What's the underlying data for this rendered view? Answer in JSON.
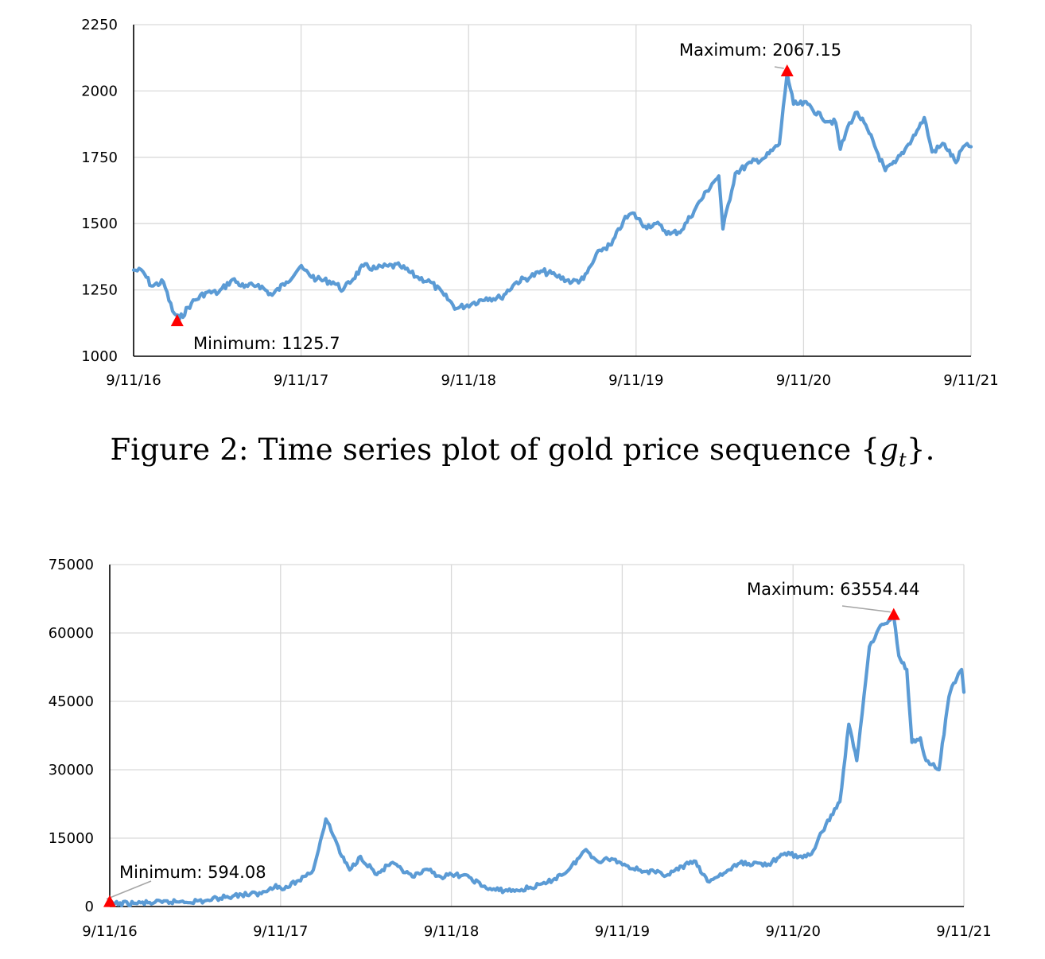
{
  "caption": {
    "prefix": "Figure 2: Time series plot of gold price sequence {",
    "symbol": "g",
    "subscript": "t",
    "suffix": "}."
  },
  "chart_data": [
    {
      "type": "line",
      "title": "",
      "xlabel": "",
      "ylabel": "",
      "ylim": [
        1000,
        2250
      ],
      "yticks": [
        1000,
        1250,
        1500,
        1750,
        2000,
        2250
      ],
      "xticks": [
        "9/11/16",
        "9/11/17",
        "9/11/18",
        "9/11/19",
        "9/11/20",
        "9/11/21"
      ],
      "xlim": [
        "2016-09-11",
        "2021-09-11"
      ],
      "grid": true,
      "series_color": "#5b9bd5",
      "marker_color": "#ff0000",
      "series": [
        {
          "x": [
            "2016-09-11",
            "2016-10-01",
            "2016-10-20",
            "2016-11-15",
            "2016-12-05",
            "2016-12-20",
            "2017-01-15",
            "2017-02-15",
            "2017-03-15",
            "2017-04-15",
            "2017-05-10",
            "2017-06-10",
            "2017-07-10",
            "2017-08-10",
            "2017-09-08",
            "2017-10-15",
            "2017-11-20",
            "2017-12-12",
            "2018-01-25",
            "2018-02-20",
            "2018-03-20",
            "2018-04-15",
            "2018-05-20",
            "2018-06-20",
            "2018-07-20",
            "2018-08-16",
            "2018-09-20",
            "2018-10-20",
            "2018-11-20",
            "2018-12-25",
            "2019-01-25",
            "2019-02-20",
            "2019-03-20",
            "2019-04-25",
            "2019-05-20",
            "2019-06-25",
            "2019-07-20",
            "2019-08-15",
            "2019-09-04",
            "2019-10-01",
            "2019-10-25",
            "2019-11-25",
            "2019-12-20",
            "2020-01-20",
            "2020-02-24",
            "2020-03-10",
            "2020-03-19",
            "2020-04-15",
            "2020-05-20",
            "2020-06-20",
            "2020-07-20",
            "2020-08-06",
            "2020-08-20",
            "2020-09-20",
            "2020-10-20",
            "2020-11-20",
            "2020-11-30",
            "2020-12-20",
            "2021-01-06",
            "2021-02-01",
            "2021-03-08",
            "2021-03-30",
            "2021-04-20",
            "2021-05-20",
            "2021-06-01",
            "2021-06-18",
            "2021-07-15",
            "2021-08-09",
            "2021-08-25",
            "2021-09-11"
          ],
          "y": [
            1325,
            1320,
            1265,
            1280,
            1170,
            1140,
            1200,
            1240,
            1240,
            1290,
            1260,
            1270,
            1230,
            1280,
            1335,
            1290,
            1280,
            1250,
            1340,
            1330,
            1340,
            1340,
            1300,
            1280,
            1230,
            1180,
            1200,
            1220,
            1220,
            1280,
            1300,
            1320,
            1305,
            1280,
            1290,
            1400,
            1420,
            1510,
            1540,
            1490,
            1500,
            1460,
            1475,
            1560,
            1650,
            1680,
            1480,
            1690,
            1730,
            1750,
            1800,
            2067,
            1950,
            1950,
            1900,
            1880,
            1780,
            1880,
            1920,
            1840,
            1700,
            1730,
            1780,
            1860,
            1900,
            1770,
            1800,
            1730,
            1790,
            1790
          ]
        }
      ],
      "annotations": [
        {
          "label": "Minimum: 1125.7",
          "x": "2016-12-15",
          "y": 1125.7
        },
        {
          "label": "Maximum: 2067.15",
          "x": "2020-08-06",
          "y": 2067.15
        }
      ]
    },
    {
      "type": "line",
      "title": "",
      "xlabel": "",
      "ylabel": "",
      "ylim": [
        0,
        75000
      ],
      "yticks": [
        0,
        15000,
        30000,
        45000,
        60000,
        75000
      ],
      "xticks": [
        "9/11/16",
        "9/11/17",
        "9/11/18",
        "9/11/19",
        "9/11/20",
        "9/11/21"
      ],
      "xlim": [
        "2016-09-11",
        "2021-09-11"
      ],
      "grid": true,
      "series_color": "#5b9bd5",
      "marker_color": "#ff0000",
      "series": [
        {
          "x": [
            "2016-09-11",
            "2016-11-01",
            "2017-01-01",
            "2017-02-10",
            "2017-04-01",
            "2017-05-20",
            "2017-06-20",
            "2017-08-01",
            "2017-09-01",
            "2017-09-15",
            "2017-10-20",
            "2017-11-20",
            "2017-12-17",
            "2018-01-05",
            "2018-01-20",
            "2018-02-06",
            "2018-03-01",
            "2018-04-05",
            "2018-05-05",
            "2018-06-20",
            "2018-07-25",
            "2018-08-20",
            "2018-09-20",
            "2018-10-20",
            "2018-11-25",
            "2018-12-15",
            "2019-02-01",
            "2019-04-01",
            "2019-05-20",
            "2019-06-26",
            "2019-07-20",
            "2019-08-20",
            "2019-09-20",
            "2019-10-20",
            "2019-12-18",
            "2020-02-12",
            "2020-03-12",
            "2020-04-20",
            "2020-05-20",
            "2020-07-20",
            "2020-09-01",
            "2020-09-20",
            "2020-10-20",
            "2020-11-20",
            "2020-12-20",
            "2021-01-08",
            "2021-01-25",
            "2021-02-21",
            "2021-03-13",
            "2021-04-14",
            "2021-04-25",
            "2021-05-12",
            "2021-05-23",
            "2021-06-10",
            "2021-06-22",
            "2021-07-20",
            "2021-08-10",
            "2021-08-20",
            "2021-09-06",
            "2021-09-11"
          ],
          "y": [
            594.08,
            700,
            900,
            1100,
            1200,
            2200,
            2600,
            2800,
            4800,
            3700,
            5700,
            8000,
            19200,
            15000,
            11000,
            8000,
            11000,
            7000,
            9500,
            6500,
            8000,
            6500,
            7000,
            6400,
            4000,
            3600,
            3500,
            5000,
            8000,
            12500,
            10000,
            10500,
            9000,
            8000,
            7000,
            10000,
            5500,
            7500,
            9500,
            9300,
            11900,
            10700,
            11500,
            18000,
            23000,
            40000,
            32000,
            57000,
            61000,
            63554.44,
            55000,
            52000,
            36000,
            37000,
            32000,
            30000,
            46000,
            49000,
            52000,
            47000
          ]
        }
      ],
      "annotations": [
        {
          "label": "Minimum: 594.08",
          "x": "2016-09-11",
          "y": 594.08
        },
        {
          "label": "Maximum: 63554.44",
          "x": "2021-04-14",
          "y": 63554.44
        }
      ]
    }
  ]
}
